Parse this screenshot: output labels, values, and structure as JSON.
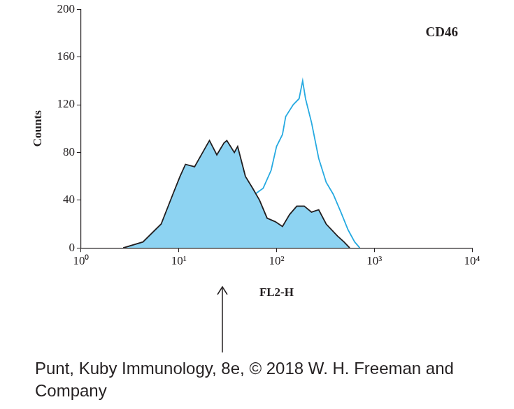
{
  "chart_data": {
    "type": "line",
    "title": "CD46",
    "x_label": "FL2-H",
    "y_label": "Counts",
    "annotation": "Punt, Kuby Immunology, 8e, © 2018 W. H. Freeman and Company",
    "log": "x",
    "grid": false,
    "xlim": [
      1,
      10000
    ],
    "xticks": [
      {
        "value": 1,
        "label": "10⁰"
      },
      {
        "value": 10,
        "label": "10¹"
      },
      {
        "value": 100,
        "label": "10²"
      },
      {
        "value": 1000,
        "label": "10³"
      },
      {
        "value": 10000,
        "label": "10⁴"
      }
    ],
    "ylim": [
      0,
      200
    ],
    "yticks": [
      0,
      40,
      80,
      120,
      160,
      200
    ],
    "series": [
      {
        "type": "area",
        "color": "#8dd3f2",
        "x": [
          2.7,
          4.3,
          6.6,
          8.7,
          10.3,
          11.7,
          14.5,
          19,
          20.6,
          24.5,
          29,
          31,
          37,
          40,
          48,
          57,
          67,
          80,
          97,
          115,
          136,
          161,
          192,
          228,
          270,
          322,
          420,
          490,
          560
        ],
        "values": [
          0,
          5,
          20,
          45,
          60,
          70,
          68,
          85,
          90,
          78,
          88,
          90,
          80,
          85,
          60,
          50,
          40,
          25,
          22,
          18,
          28,
          35,
          35,
          30,
          32,
          20,
          10,
          5,
          0
        ]
      },
      {
        "type": "line",
        "color": "#27aae1",
        "x": [
          60,
          73,
          88,
          100,
          115,
          124,
          148,
          170,
          185,
          198,
          228,
          270,
          322,
          380,
          455,
          540,
          630,
          710
        ],
        "values": [
          45,
          50,
          65,
          85,
          95,
          110,
          120,
          125,
          140,
          125,
          105,
          75,
          55,
          45,
          30,
          15,
          5,
          0
        ]
      }
    ]
  }
}
